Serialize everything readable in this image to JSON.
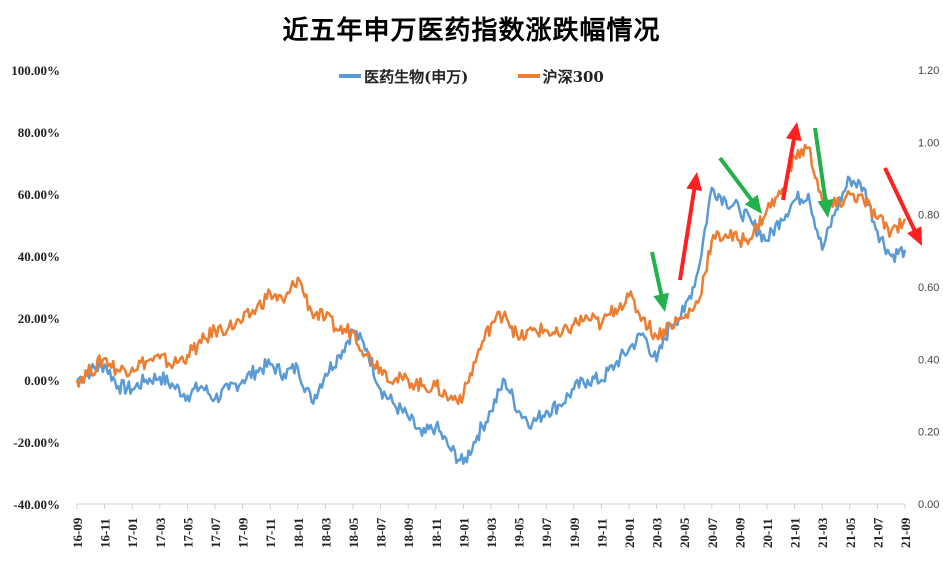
{
  "chart_data": {
    "type": "line",
    "title": "近五年申万医药指数涨跌幅情况",
    "x": [
      "16-09",
      "16-10",
      "16-11",
      "16-12",
      "17-01",
      "17-02",
      "17-03",
      "17-04",
      "17-05",
      "17-06",
      "17-07",
      "17-08",
      "17-09",
      "17-10",
      "17-11",
      "17-12",
      "18-01",
      "18-02",
      "18-03",
      "18-04",
      "18-05",
      "18-06",
      "18-07",
      "18-08",
      "18-09",
      "18-10",
      "18-11",
      "18-12",
      "19-01",
      "19-02",
      "19-03",
      "19-04",
      "19-05",
      "19-06",
      "19-07",
      "19-08",
      "19-09",
      "19-10",
      "19-11",
      "19-12",
      "20-01",
      "20-02",
      "20-03",
      "20-04",
      "20-05",
      "20-06",
      "20-07",
      "20-08",
      "20-09",
      "20-10",
      "20-11",
      "20-12",
      "21-01",
      "21-02",
      "21-03",
      "21-04",
      "21-05",
      "21-06",
      "21-07",
      "21-08",
      "21-09"
    ],
    "x_tick_labels": [
      "16-09",
      "16-11",
      "17-01",
      "17-03",
      "17-05",
      "17-07",
      "17-09",
      "17-11",
      "18-01",
      "18-03",
      "18-05",
      "18-07",
      "18-09",
      "18-11",
      "19-01",
      "19-03",
      "19-05",
      "19-07",
      "19-09",
      "19-11",
      "20-01",
      "20-03",
      "20-05",
      "20-07",
      "20-09",
      "20-11",
      "21-01",
      "21-03",
      "21-05",
      "21-07",
      "21-09"
    ],
    "y_tick_labels": [
      "100.00%",
      "80.00%",
      "60.00%",
      "40.00%",
      "20.00%",
      "0.00%",
      "-20.00%",
      "-40.00%"
    ],
    "ylim": [
      -40,
      100
    ],
    "y2_tick_labels": [
      "1.20",
      "1.00",
      "0.80",
      "0.60",
      "0.40",
      "0.20",
      "0.00"
    ],
    "y2lim": [
      0,
      1.2
    ],
    "grid": false,
    "legend_position": "top-center",
    "series": [
      {
        "name": "医药生物(申万)",
        "color": "#5B9BD5",
        "values": [
          0,
          3,
          5,
          -2,
          -3,
          0,
          1,
          -2,
          -5,
          -2,
          -6,
          -3,
          0,
          3,
          5,
          2,
          4,
          -7,
          2,
          8,
          16,
          10,
          -3,
          -8,
          -12,
          -18,
          -15,
          -22,
          -27,
          -18,
          -10,
          0,
          -10,
          -14,
          -10,
          -8,
          -3,
          0,
          0,
          5,
          10,
          15,
          6,
          18,
          22,
          35,
          62,
          58,
          55,
          50,
          45,
          52,
          58,
          60,
          42,
          55,
          65,
          62,
          48,
          40,
          42
        ]
      },
      {
        "name": "沪深300",
        "color": "#ED7D31",
        "values": [
          0,
          3,
          7,
          3,
          4,
          6,
          7,
          5,
          8,
          12,
          16,
          17,
          19,
          23,
          28,
          25,
          33,
          22,
          20,
          16,
          16,
          8,
          4,
          0,
          0,
          -2,
          -2,
          -6,
          -5,
          8,
          18,
          22,
          13,
          16,
          16,
          14,
          18,
          20,
          18,
          23,
          27,
          20,
          14,
          18,
          20,
          25,
          45,
          47,
          45,
          47,
          55,
          60,
          72,
          75,
          58,
          56,
          60,
          58,
          52,
          48,
          52
        ]
      }
    ],
    "annotations": [
      {
        "type": "arrow",
        "direction": "down",
        "color": "#22B14C"
      },
      {
        "type": "arrow",
        "direction": "up",
        "color": "#FF2020"
      },
      {
        "type": "arrow",
        "direction": "down",
        "color": "#22B14C"
      },
      {
        "type": "arrow",
        "direction": "up",
        "color": "#FF2020"
      },
      {
        "type": "arrow",
        "direction": "down",
        "color": "#22B14C"
      },
      {
        "type": "arrow",
        "direction": "down",
        "color": "#FF2020"
      }
    ]
  }
}
